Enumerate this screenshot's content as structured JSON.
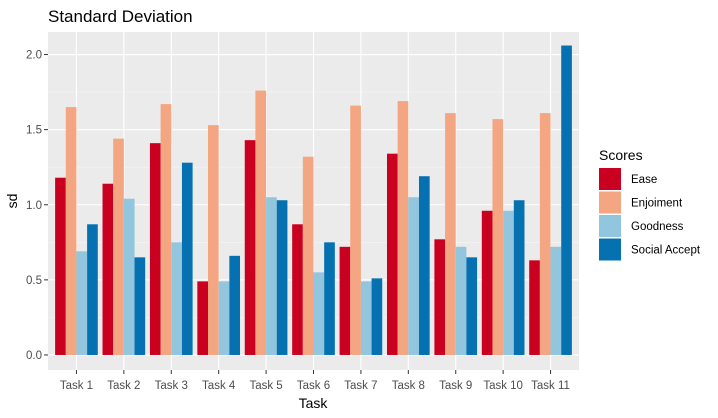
{
  "chart_data": {
    "type": "bar",
    "title": "Standard Deviation",
    "xlabel": "Task",
    "ylabel": "sd",
    "ylim": [
      -0.1,
      2.15
    ],
    "yticks": [
      0.0,
      0.5,
      1.0,
      1.5,
      2.0
    ],
    "ytick_labels": [
      "0.0",
      "0.5",
      "1.0",
      "1.5",
      "2.0"
    ],
    "grid": true,
    "legend_position": "right",
    "legend_title": "Scores",
    "categories": [
      "Task 1",
      "Task 2",
      "Task 3",
      "Task 4",
      "Task 5",
      "Task 6",
      "Task 7",
      "Task 8",
      "Task 9",
      "Task 10",
      "Task 11"
    ],
    "series": [
      {
        "name": "Ease",
        "color": "#ca0020",
        "values": [
          1.18,
          1.14,
          1.41,
          0.49,
          1.43,
          0.87,
          0.72,
          1.34,
          0.77,
          0.96,
          0.63
        ]
      },
      {
        "name": "Enjoiment",
        "color": "#f4a582",
        "values": [
          1.65,
          1.44,
          1.67,
          1.53,
          1.76,
          1.32,
          1.66,
          1.69,
          1.61,
          1.57,
          1.61
        ]
      },
      {
        "name": "Goodness",
        "color": "#92c5de",
        "values": [
          0.69,
          1.04,
          0.75,
          0.49,
          1.05,
          0.55,
          0.49,
          1.05,
          0.72,
          0.96,
          0.72
        ]
      },
      {
        "name": "Social Accept",
        "color": "#0571b0",
        "values": [
          0.87,
          0.65,
          1.28,
          0.66,
          1.03,
          0.75,
          0.51,
          1.19,
          0.65,
          1.03,
          2.06
        ]
      }
    ]
  },
  "colors": {
    "panel_background": "#ebebeb",
    "grid_major": "#ffffff",
    "grid_minor": "#f5f5f5"
  }
}
